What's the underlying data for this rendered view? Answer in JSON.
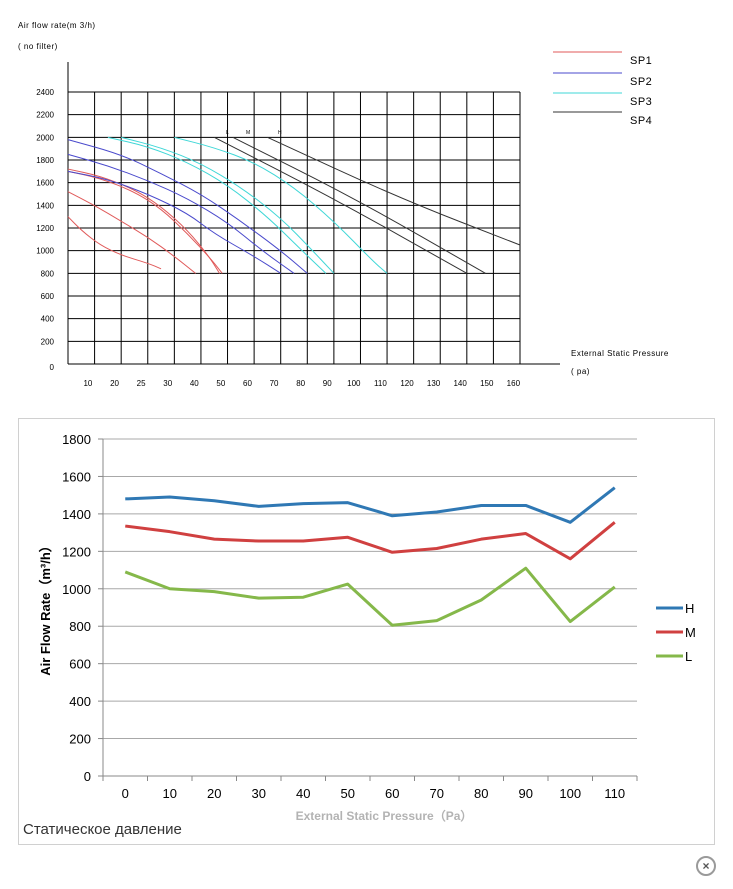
{
  "chart_data": [
    {
      "type": "line",
      "title": "",
      "ylabel": "Air flow rate(m 3/h)",
      "ylabel_note": "( no filter)",
      "xlabel": "External Static Pressure",
      "xlabel_unit": "( pa)",
      "x_ticks": [
        "10",
        "20",
        "25",
        "30",
        "40",
        "50",
        "60",
        "70",
        "80",
        "90",
        "100",
        "110",
        "120",
        "130",
        "140",
        "150",
        "160"
      ],
      "y_ticks": [
        "0",
        "200",
        "400",
        "600",
        "800",
        "1000",
        "1200",
        "1400",
        "1600",
        "1800",
        "2000",
        "2200",
        "2400"
      ],
      "speed_marks": [
        "L",
        "M",
        "H"
      ],
      "legend_position": "top-right",
      "grid": true,
      "legend": [
        {
          "name": "SP1",
          "color": "#e05a5a"
        },
        {
          "name": "SP2",
          "color": "#4a4acc"
        },
        {
          "name": "SP3",
          "color": "#3fd7d7"
        },
        {
          "name": "SP4",
          "color": "#333333"
        }
      ],
      "series": [
        {
          "group": "SP1",
          "color": "#e05a5a",
          "points": [
            [
              0,
              1300
            ],
            [
              5,
              1180
            ],
            [
              12,
              1050
            ],
            [
              20,
              960
            ],
            [
              30,
              890
            ],
            [
              35,
              840
            ]
          ]
        },
        {
          "group": "SP1",
          "color": "#e05a5a",
          "points": [
            [
              0,
              1520
            ],
            [
              10,
              1400
            ],
            [
              20,
              1260
            ],
            [
              30,
              1120
            ],
            [
              40,
              950
            ],
            [
              48,
              800
            ]
          ]
        },
        {
          "group": "SP1",
          "color": "#e05a5a",
          "points": [
            [
              0,
              1700
            ],
            [
              12,
              1640
            ],
            [
              25,
              1520
            ],
            [
              35,
              1370
            ],
            [
              45,
              1150
            ],
            [
              54,
              920
            ],
            [
              58,
              800
            ]
          ]
        },
        {
          "group": "SP1",
          "color": "#e05a5a",
          "points": [
            [
              0,
              1720
            ],
            [
              12,
              1660
            ],
            [
              25,
              1540
            ],
            [
              35,
              1390
            ],
            [
              45,
              1180
            ],
            [
              53,
              950
            ],
            [
              57,
              800
            ]
          ]
        },
        {
          "group": "SP2",
          "color": "#4a4acc",
          "points": [
            [
              0,
              1700
            ],
            [
              15,
              1630
            ],
            [
              30,
              1500
            ],
            [
              45,
              1330
            ],
            [
              55,
              1150
            ],
            [
              70,
              950
            ],
            [
              80,
              800
            ]
          ]
        },
        {
          "group": "SP2",
          "color": "#4a4acc",
          "points": [
            [
              0,
              1850
            ],
            [
              15,
              1750
            ],
            [
              30,
              1620
            ],
            [
              45,
              1460
            ],
            [
              60,
              1250
            ],
            [
              73,
              1000
            ],
            [
              85,
              800
            ]
          ]
        },
        {
          "group": "SP2",
          "color": "#4a4acc",
          "points": [
            [
              0,
              1980
            ],
            [
              20,
              1850
            ],
            [
              35,
              1680
            ],
            [
              50,
              1500
            ],
            [
              65,
              1260
            ],
            [
              80,
              1000
            ],
            [
              90,
              800
            ]
          ]
        },
        {
          "group": "SP3",
          "color": "#3fd7d7",
          "points": [
            [
              15,
              2000
            ],
            [
              30,
              1920
            ],
            [
              45,
              1780
            ],
            [
              60,
              1580
            ],
            [
              75,
              1300
            ],
            [
              88,
              1000
            ],
            [
              97,
              800
            ]
          ]
        },
        {
          "group": "SP3",
          "color": "#3fd7d7",
          "points": [
            [
              20,
              2000
            ],
            [
              35,
              1910
            ],
            [
              50,
              1770
            ],
            [
              65,
              1560
            ],
            [
              80,
              1290
            ],
            [
              92,
              1000
            ],
            [
              100,
              800
            ]
          ]
        },
        {
          "group": "SP3",
          "color": "#3fd7d7",
          "points": [
            [
              40,
              2000
            ],
            [
              55,
              1910
            ],
            [
              70,
              1780
            ],
            [
              85,
              1560
            ],
            [
              100,
              1260
            ],
            [
              115,
              900
            ],
            [
              120,
              800
            ]
          ]
        },
        {
          "group": "SP4",
          "color": "#333333",
          "points": [
            [
              55,
              2000
            ],
            [
              100,
              1460
            ],
            [
              150,
              800
            ]
          ]
        },
        {
          "group": "SP4",
          "color": "#333333",
          "points": [
            [
              62,
              2000
            ],
            [
              108,
              1460
            ],
            [
              157,
              800
            ]
          ]
        },
        {
          "group": "SP4",
          "color": "#333333",
          "points": [
            [
              75,
              2000
            ],
            [
              125,
              1460
            ],
            [
              170,
              1050
            ]
          ]
        }
      ]
    },
    {
      "type": "line",
      "title": "",
      "ylabel": "Air Flow Rate（m³/h）",
      "xlabel": "External Static Pressure（Pa）",
      "categories": [
        "0",
        "10",
        "20",
        "30",
        "40",
        "50",
        "60",
        "70",
        "80",
        "90",
        "100",
        "110"
      ],
      "ylim": [
        0,
        1800
      ],
      "y_ticks": [
        "0",
        "200",
        "400",
        "600",
        "800",
        "1000",
        "1200",
        "1400",
        "1600",
        "1800"
      ],
      "grid": true,
      "legend_position": "right",
      "series": [
        {
          "name": "H",
          "color": "#2f78b4",
          "values": [
            1480,
            1490,
            1470,
            1440,
            1455,
            1460,
            1390,
            1410,
            1445,
            1445,
            1355,
            1540
          ]
        },
        {
          "name": "M",
          "color": "#d04040",
          "values": [
            1335,
            1305,
            1265,
            1255,
            1255,
            1275,
            1195,
            1215,
            1265,
            1295,
            1160,
            1355
          ]
        },
        {
          "name": "L",
          "color": "#85b84a",
          "values": [
            1090,
            1000,
            985,
            950,
            955,
            1025,
            805,
            830,
            940,
            1110,
            825,
            1010
          ]
        }
      ]
    }
  ],
  "caption": "Статическое давление",
  "close_icon_glyph": "×"
}
